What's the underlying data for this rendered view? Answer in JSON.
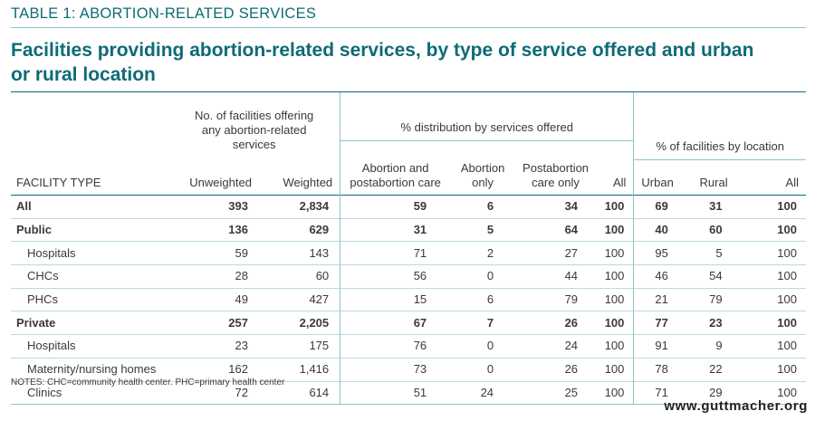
{
  "table_label": "TABLE 1: ABORTION-RELATED SERVICES",
  "title": "Facilities providing abortion-related services, by type of service offered and urban or rural location",
  "headers": {
    "group_facilities": "No. of facilities offering any abortion-related services",
    "group_services": "% distribution by services offered",
    "group_location": "% of facilities by location",
    "facility_type": "FACILITY TYPE",
    "unweighted": "Unweighted",
    "weighted": "Weighted",
    "abortion_postabortion": "Abortion and postabortion care",
    "abortion_only": "Abortion only",
    "postabortion_only": "Postabortion care only",
    "all_services": "All",
    "urban": "Urban",
    "rural": "Rural",
    "all_location": "All"
  },
  "rows": [
    {
      "name": "All",
      "bold": true,
      "sub": false,
      "cells": [
        "393",
        "2,834",
        "59",
        "6",
        "34",
        "100",
        "69",
        "31",
        "100"
      ]
    },
    {
      "name": "Public",
      "bold": true,
      "sub": false,
      "cells": [
        "136",
        "629",
        "31",
        "5",
        "64",
        "100",
        "40",
        "60",
        "100"
      ]
    },
    {
      "name": "Hospitals",
      "bold": false,
      "sub": true,
      "cells": [
        "59",
        "143",
        "71",
        "2",
        "27",
        "100",
        "95",
        "5",
        "100"
      ]
    },
    {
      "name": "CHCs",
      "bold": false,
      "sub": true,
      "cells": [
        "28",
        "60",
        "56",
        "0",
        "44",
        "100",
        "46",
        "54",
        "100"
      ]
    },
    {
      "name": "PHCs",
      "bold": false,
      "sub": true,
      "cells": [
        "49",
        "427",
        "15",
        "6",
        "79",
        "100",
        "21",
        "79",
        "100"
      ]
    },
    {
      "name": "Private",
      "bold": true,
      "sub": false,
      "cells": [
        "257",
        "2,205",
        "67",
        "7",
        "26",
        "100",
        "77",
        "23",
        "100"
      ]
    },
    {
      "name": "Hospitals",
      "bold": false,
      "sub": true,
      "cells": [
        "23",
        "175",
        "76",
        "0",
        "24",
        "100",
        "91",
        "9",
        "100"
      ]
    },
    {
      "name": "Maternity/nursing homes",
      "bold": false,
      "sub": true,
      "cells": [
        "162",
        "1,416",
        "73",
        "0",
        "26",
        "100",
        "78",
        "22",
        "100"
      ]
    },
    {
      "name": "Clinics",
      "bold": false,
      "sub": true,
      "cells": [
        "72",
        "614",
        "51",
        "24",
        "25",
        "100",
        "71",
        "29",
        "100"
      ]
    }
  ],
  "notes": "NOTES: CHC=community health center. PHC=primary health center",
  "source_url": "www.guttmacher.org",
  "colors": {
    "accent": "#0d6b75",
    "rule_light": "#8ec4c8"
  }
}
